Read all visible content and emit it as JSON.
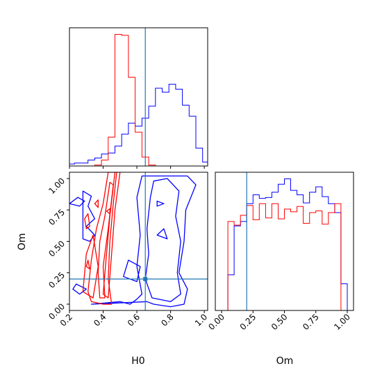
{
  "chart_data": {
    "type": "corner",
    "parameters": [
      "H0",
      "Om"
    ],
    "truths": {
      "H0": 0.65,
      "Om": 0.2
    },
    "truth_color": "#1f77b4",
    "series_colors": {
      "blue": "#0000ff",
      "red": "#ff0000"
    },
    "panels": [
      {
        "kind": "histogram",
        "parameter": "H0",
        "xlim": [
          0.2,
          1.02
        ],
        "xlabel": "",
        "x_ticks": [
          0.2,
          0.4,
          0.6,
          0.8,
          1.0
        ],
        "y_ticks_shown": false,
        "bin_edges": [
          0.15,
          0.19,
          0.23,
          0.27,
          0.31,
          0.35,
          0.39,
          0.43,
          0.47,
          0.51,
          0.55,
          0.59,
          0.63,
          0.67,
          0.71,
          0.75,
          0.79,
          0.83,
          0.87,
          0.91,
          0.95,
          0.99,
          1.03
        ],
        "series": [
          {
            "color": "blue",
            "counts": [
              2,
              2,
              3,
              3,
              6,
              8,
              12,
              13,
              20,
              32,
              43,
              40,
              48,
              60,
              78,
              74,
              82,
              77,
              61,
              50,
              18,
              4
            ]
          },
          {
            "color": "red",
            "counts": [
              0,
              0,
              0,
              0,
              0,
              1,
              6,
              29,
              132,
              131,
              89,
              34,
              9,
              1,
              0,
              0,
              0,
              0,
              0,
              0,
              0,
              0
            ]
          }
        ]
      },
      {
        "kind": "contour",
        "x_parameter": "H0",
        "y_parameter": "Om",
        "xlim": [
          0.2,
          1.02
        ],
        "ylim": [
          -0.05,
          1.05
        ],
        "xlabel": "H0",
        "ylabel": "Om",
        "x_ticks": [
          0.2,
          0.4,
          0.6,
          0.8,
          1.0
        ],
        "x_tick_labels": [
          "0.2",
          "0.4",
          "0.6",
          "0.8",
          "1.0"
        ],
        "y_ticks": [
          0.0,
          0.25,
          0.5,
          0.75,
          1.0
        ],
        "y_tick_labels": [
          "0.00",
          "0.25",
          "0.50",
          "0.75",
          "1.00"
        ],
        "series": [
          {
            "color": "blue",
            "contours": [
              [
                [
                  0.33,
                  0.0
                ],
                [
                  0.5,
                  0.02
                ],
                [
                  0.56,
                  0.0
                ],
                [
                  0.6,
                  0.04
                ],
                [
                  0.63,
                  0.08
                ],
                [
                  0.6,
                  0.3
                ],
                [
                  0.62,
                  0.55
                ],
                [
                  0.6,
                  0.85
                ],
                [
                  0.63,
                  1.02
                ],
                [
                  0.9,
                  1.02
                ],
                [
                  0.95,
                  0.95
                ],
                [
                  0.89,
                  0.75
                ],
                [
                  0.88,
                  0.5
                ],
                [
                  0.85,
                  0.25
                ],
                [
                  0.9,
                  0.12
                ],
                [
                  0.88,
                  0.0
                ],
                [
                  0.8,
                  -0.02
                ],
                [
                  0.7,
                  0.0
                ],
                [
                  0.66,
                  0.02
                ]
              ],
              [
                [
                  0.69,
                  0.05
                ],
                [
                  0.8,
                  0.02
                ],
                [
                  0.86,
                  0.08
                ],
                [
                  0.84,
                  0.25
                ],
                [
                  0.86,
                  0.5
                ],
                [
                  0.83,
                  0.7
                ],
                [
                  0.85,
                  0.9
                ],
                [
                  0.78,
                  1.0
                ],
                [
                  0.7,
                  0.98
                ],
                [
                  0.68,
                  0.85
                ],
                [
                  0.66,
                  0.6
                ],
                [
                  0.67,
                  0.4
                ],
                [
                  0.65,
                  0.2
                ]
              ],
              [
                [
                  0.2,
                  0.8
                ],
                [
                  0.26,
                  0.78
                ],
                [
                  0.29,
                  0.82
                ],
                [
                  0.25,
                  0.85
                ]
              ],
              [
                [
                  0.28,
                  0.9
                ],
                [
                  0.33,
                  0.86
                ],
                [
                  0.31,
                  0.78
                ],
                [
                  0.35,
                  0.68
                ],
                [
                  0.3,
                  0.62
                ],
                [
                  0.35,
                  0.55
                ],
                [
                  0.32,
                  0.5
                ],
                [
                  0.28,
                  0.52
                ]
              ],
              [
                [
                  0.22,
                  0.12
                ],
                [
                  0.26,
                  0.08
                ],
                [
                  0.3,
                  0.12
                ],
                [
                  0.24,
                  0.16
                ]
              ],
              [
                [
                  0.52,
                  0.22
                ],
                [
                  0.6,
                  0.18
                ],
                [
                  0.62,
                  0.3
                ],
                [
                  0.55,
                  0.35
                ]
              ],
              [
                [
                  0.72,
                  0.55
                ],
                [
                  0.78,
                  0.52
                ],
                [
                  0.76,
                  0.6
                ]
              ],
              [
                [
                  0.72,
                  0.78
                ],
                [
                  0.76,
                  0.8
                ],
                [
                  0.72,
                  0.82
                ]
              ]
            ]
          },
          {
            "color": "red",
            "contours": [
              [
                [
                  0.33,
                  0.02
                ],
                [
                  0.4,
                  0.0
                ],
                [
                  0.45,
                  0.0
                ],
                [
                  0.43,
                  0.2
                ],
                [
                  0.44,
                  0.5
                ],
                [
                  0.46,
                  0.8
                ],
                [
                  0.48,
                  1.05
                ],
                [
                  0.43,
                  1.05
                ],
                [
                  0.4,
                  0.8
                ],
                [
                  0.36,
                  0.6
                ],
                [
                  0.33,
                  0.35
                ],
                [
                  0.31,
                  0.1
                ]
              ],
              [
                [
                  0.38,
                  0.05
                ],
                [
                  0.41,
                  0.05
                ],
                [
                  0.4,
                  0.3
                ],
                [
                  0.43,
                  0.6
                ],
                [
                  0.46,
                  0.95
                ],
                [
                  0.44,
                  0.97
                ],
                [
                  0.41,
                  0.7
                ],
                [
                  0.38,
                  0.5
                ],
                [
                  0.37,
                  0.25
                ]
              ],
              [
                [
                  0.4,
                  0.08
                ],
                [
                  0.43,
                  0.05
                ],
                [
                  0.45,
                  0.4
                ],
                [
                  0.47,
                  0.75
                ],
                [
                  0.5,
                  1.05
                ],
                [
                  0.47,
                  1.05
                ],
                [
                  0.44,
                  0.7
                ],
                [
                  0.42,
                  0.4
                ]
              ],
              [
                [
                  0.28,
                  0.1
                ],
                [
                  0.34,
                  0.05
                ],
                [
                  0.37,
                  0.3
                ],
                [
                  0.34,
                  0.55
                ],
                [
                  0.3,
                  0.4
                ]
              ],
              [
                [
                  0.29,
                  0.68
                ],
                [
                  0.31,
                  0.72
                ],
                [
                  0.32,
                  0.62
                ],
                [
                  0.3,
                  0.6
                ]
              ],
              [
                [
                  0.35,
                  0.8
                ],
                [
                  0.37,
                  0.83
                ],
                [
                  0.37,
                  0.77
                ]
              ],
              [
                [
                  0.3,
                  0.3
                ],
                [
                  0.31,
                  0.35
                ],
                [
                  0.32,
                  0.28
                ]
              ],
              [
                [
                  0.42,
                  0.74
                ],
                [
                  0.44,
                  0.76
                ],
                [
                  0.44,
                  0.72
                ]
              ]
            ]
          }
        ]
      },
      {
        "kind": "histogram",
        "parameter": "Om",
        "xlim": [
          -0.05,
          1.05
        ],
        "xlabel": "Om",
        "x_ticks": [
          0.0,
          0.25,
          0.5,
          0.75,
          1.0
        ],
        "x_tick_labels": [
          "0.00",
          "0.25",
          "0.50",
          "0.75",
          "1.00"
        ],
        "y_ticks_shown": false,
        "bin_edges": [
          -0.05,
          0.0,
          0.05,
          0.1,
          0.15,
          0.2,
          0.25,
          0.3,
          0.35,
          0.4,
          0.45,
          0.5,
          0.55,
          0.6,
          0.65,
          0.7,
          0.75,
          0.8,
          0.85,
          0.9,
          0.95,
          1.0,
          1.05
        ],
        "series": [
          {
            "color": "blue",
            "counts": [
              0,
              0,
              40,
              95,
              100,
              120,
              130,
              126,
              127,
              133,
              142,
              148,
              135,
              130,
              121,
              133,
              139,
              128,
              120,
              110,
              30,
              0
            ]
          },
          {
            "color": "red",
            "counts": [
              0,
              0,
              100,
              96,
              107,
              118,
              102,
              120,
              104,
              120,
              103,
              114,
              111,
              117,
              98,
              110,
              112,
              97,
              110,
              120,
              0,
              0
            ]
          }
        ]
      }
    ]
  }
}
